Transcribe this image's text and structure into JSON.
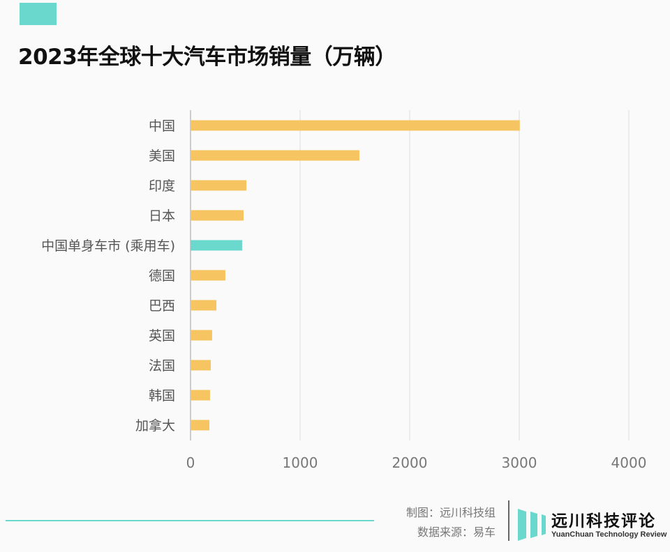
{
  "title": "2023年全球十大汽车市场销量（万辆）",
  "chart_data": {
    "type": "bar",
    "orientation": "horizontal",
    "title": "2023年全球十大汽车市场销量（万辆）",
    "categories": [
      "中国",
      "美国",
      "印度",
      "日本",
      "中国单身车市 (乘用车)",
      "德国",
      "巴西",
      "英国",
      "法国",
      "韩国",
      "加拿大"
    ],
    "values": [
      3005,
      1541,
      510,
      484,
      471,
      318,
      236,
      197,
      185,
      178,
      172
    ],
    "colors": [
      "#f6c461",
      "#f6c461",
      "#f6c461",
      "#f6c461",
      "#6ad8cc",
      "#f6c461",
      "#f6c461",
      "#f6c461",
      "#f6c461",
      "#f6c461",
      "#f6c461"
    ],
    "xlim": [
      0,
      4000
    ],
    "xticks": [
      "0",
      "1000",
      "2000",
      "3000",
      "4000"
    ],
    "grid": true,
    "legend": "none"
  },
  "footer": {
    "credit": "制图：远川科技组",
    "source": "数据来源：易车",
    "brand_cn": "远川科技评论",
    "brand_en": "YuanChuan Technology Review"
  }
}
